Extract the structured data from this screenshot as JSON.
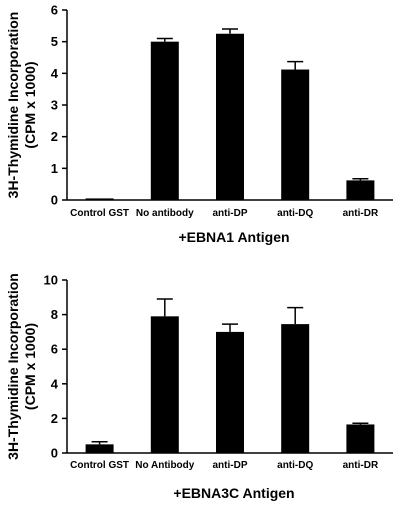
{
  "chart_data": [
    {
      "type": "bar",
      "categories": [
        "Control GST",
        "No antibody",
        "anti-DP",
        "anti-DQ",
        "anti-DR"
      ],
      "values": [
        0.05,
        5.0,
        5.25,
        4.12,
        0.62
      ],
      "errors": [
        0.0,
        0.1,
        0.15,
        0.25,
        0.05
      ],
      "ylabel_line1": "3H-Thymidine Incorporation",
      "ylabel_line2": "(CPM x 1000)",
      "xlabel": "+EBNA1 Antigen",
      "ylim": [
        0,
        6
      ],
      "yticks": [
        0,
        1,
        2,
        3,
        4,
        5,
        6
      ],
      "bar_color": "#000000",
      "grid": false
    },
    {
      "type": "bar",
      "categories": [
        "Control GST",
        "No Antibody",
        "anti-DP",
        "anti-DQ",
        "anti-DR"
      ],
      "values": [
        0.5,
        7.9,
        7.0,
        7.45,
        1.65
      ],
      "errors": [
        0.15,
        1.0,
        0.45,
        0.95,
        0.07
      ],
      "ylabel_line1": "3H-Thymidine Incorporation",
      "ylabel_line2": "(CPM x 1000)",
      "xlabel": "+EBNA3C Antigen",
      "ylim": [
        0,
        10
      ],
      "yticks": [
        0,
        2,
        4,
        6,
        8,
        10
      ],
      "bar_color": "#000000",
      "grid": false
    }
  ]
}
